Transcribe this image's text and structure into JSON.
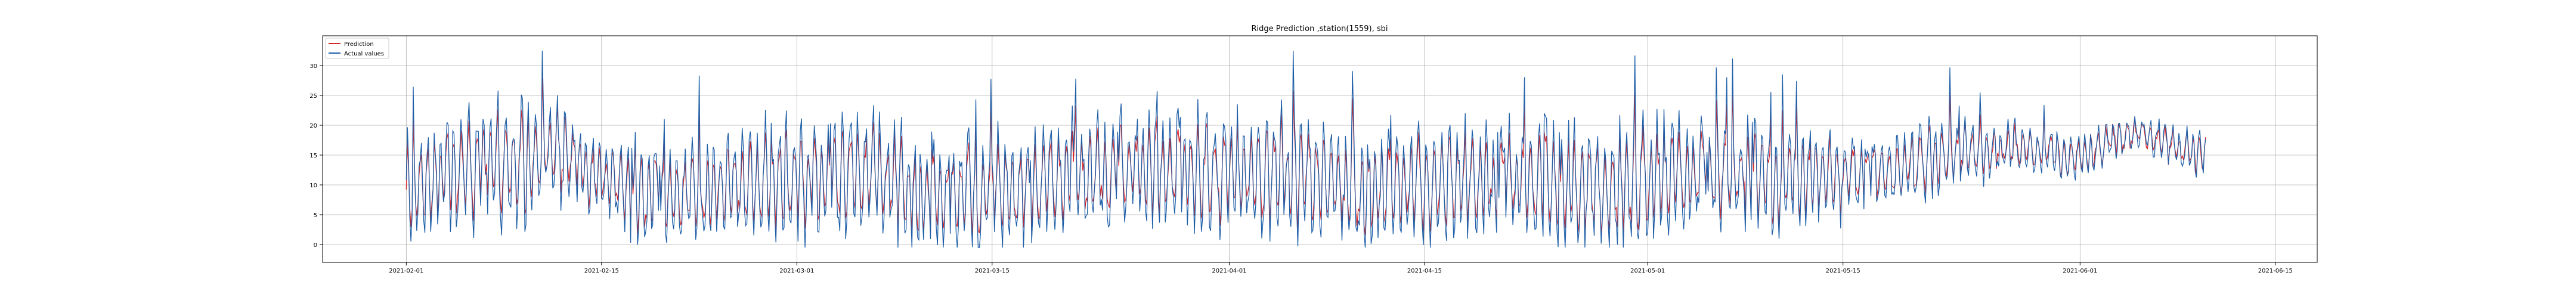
{
  "chart_data": {
    "type": "line",
    "title": "Ridge Prediction ,station(1559), sbi",
    "xlabel": "",
    "ylabel": "",
    "x_range": [
      "2021-01-26",
      "2021-06-18"
    ],
    "data_start": "2021-02-01",
    "data_end": "2021-06-10",
    "ylim": [
      -3,
      35
    ],
    "grid": true,
    "legend_position": "top-left",
    "x_ticks": [
      "2021-02-01",
      "2021-02-15",
      "2021-03-01",
      "2021-03-15",
      "2021-04-01",
      "2021-04-15",
      "2021-05-01",
      "2021-05-15",
      "2021-06-01",
      "2021-06-15"
    ],
    "y_ticks": [
      0,
      5,
      10,
      15,
      20,
      25,
      30
    ],
    "series": [
      {
        "name": "Prediction",
        "color": "#d62728"
      },
      {
        "name": "Actual values",
        "color": "#1f5fa8"
      }
    ],
    "daily_level": [
      {
        "date": "2021-02-01",
        "level": 9
      },
      {
        "date": "2021-02-05",
        "level": 13
      },
      {
        "date": "2021-02-10",
        "level": 14
      },
      {
        "date": "2021-02-12",
        "level": 17
      },
      {
        "date": "2021-02-14",
        "level": 12
      },
      {
        "date": "2021-02-18",
        "level": 9
      },
      {
        "date": "2021-02-21",
        "level": 8
      },
      {
        "date": "2021-02-26",
        "level": 10
      },
      {
        "date": "2021-03-01",
        "level": 11
      },
      {
        "date": "2021-03-07",
        "level": 12
      },
      {
        "date": "2021-03-10",
        "level": 8
      },
      {
        "date": "2021-03-15",
        "level": 9
      },
      {
        "date": "2021-03-20",
        "level": 11
      },
      {
        "date": "2021-03-24",
        "level": 13
      },
      {
        "date": "2021-03-29",
        "level": 12
      },
      {
        "date": "2021-04-03",
        "level": 12
      },
      {
        "date": "2021-04-07",
        "level": 11
      },
      {
        "date": "2021-04-10",
        "level": 9
      },
      {
        "date": "2021-04-14",
        "level": 10
      },
      {
        "date": "2021-04-19",
        "level": 11
      },
      {
        "date": "2021-04-23",
        "level": 10
      },
      {
        "date": "2021-04-28",
        "level": 9
      },
      {
        "date": "2021-05-01",
        "level": 11
      },
      {
        "date": "2021-05-05",
        "level": 12
      },
      {
        "date": "2021-05-11",
        "level": 11
      },
      {
        "date": "2021-05-15",
        "level": 12
      },
      {
        "date": "2021-05-19",
        "level": 13
      },
      {
        "date": "2021-05-22",
        "level": 15
      },
      {
        "date": "2021-05-28",
        "level": 16
      },
      {
        "date": "2021-06-01",
        "level": 15
      },
      {
        "date": "2021-06-05",
        "level": 19
      },
      {
        "date": "2021-06-08",
        "level": 16
      },
      {
        "date": "2021-06-10",
        "level": 15
      }
    ],
    "daily_amplitude": [
      {
        "date": "2021-02-01",
        "amp": 9
      },
      {
        "date": "2021-02-10",
        "amp": 11
      },
      {
        "date": "2021-02-14",
        "amp": 6
      },
      {
        "date": "2021-02-21",
        "amp": 9
      },
      {
        "date": "2021-03-01",
        "amp": 10
      },
      {
        "date": "2021-03-15",
        "amp": 9
      },
      {
        "date": "2021-04-01",
        "amp": 10
      },
      {
        "date": "2021-04-15",
        "amp": 10
      },
      {
        "date": "2021-05-01",
        "amp": 10
      },
      {
        "date": "2021-05-19",
        "amp": 7
      },
      {
        "date": "2021-05-28",
        "amp": 4
      },
      {
        "date": "2021-06-05",
        "amp": 3
      },
      {
        "date": "2021-06-10",
        "amp": 4
      }
    ]
  }
}
